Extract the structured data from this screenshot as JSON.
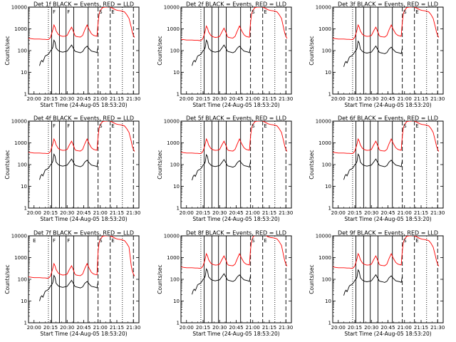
{
  "colors": {
    "events": "#000000",
    "lld": "#ff0000",
    "axes": "#000000",
    "background": "#ffffff"
  },
  "panels": [
    {
      "title": "Det 1f BLACK = Events, RED = LLD",
      "markers": [
        "F",
        "F",
        "S",
        "E"
      ]
    },
    {
      "title": "Det 2f BLACK = Events, RED = LLD",
      "markers": [
        "S",
        "E"
      ]
    },
    {
      "title": "Det 3f BLACK = Events, RED = LLD",
      "markers": [
        "S",
        "E"
      ]
    },
    {
      "title": "Det 4f BLACK = Events, RED = LLD",
      "markers": [
        "F",
        "F",
        "S",
        "E"
      ]
    },
    {
      "title": "Det 5f BLACK = Events, RED = LLD",
      "markers": [
        "S",
        "E"
      ]
    },
    {
      "title": "Det 6f BLACK = Events, RED = LLD",
      "markers": [
        "S",
        "E"
      ]
    },
    {
      "title": "Det 7f BLACK = Events, RED = LLD",
      "markers": [
        "E",
        "F",
        "F",
        "S",
        "E"
      ]
    },
    {
      "title": "Det 8f BLACK = Events, RED = LLD",
      "markers": [
        "S",
        "E"
      ]
    },
    {
      "title": "Det 9f BLACK = Events, RED = LLD",
      "markers": [
        "S",
        "E"
      ]
    }
  ],
  "chart_data": {
    "type": "line",
    "layout": "3x3 grid of identical panels",
    "xlabel": "Start Time (24-Aug-05 18:53:20)",
    "ylabel": "Counts/sec",
    "y_scale": "log",
    "ylim": [
      1,
      10000
    ],
    "y_ticks": [
      1,
      10,
      100,
      1000,
      10000
    ],
    "y_tick_labels": [
      "1",
      "10",
      "100",
      "1000",
      "10000"
    ],
    "xlim_minutes": [
      1195,
      1295
    ],
    "x_tick_minutes": [
      1200,
      1215,
      1230,
      1245,
      1260,
      1275,
      1290
    ],
    "x_tick_labels": [
      "20:00",
      "20:15",
      "20:30",
      "20:45",
      "21:00",
      "21:15",
      "21:30"
    ],
    "vertical_lines": [
      {
        "minute": 1213,
        "style": "dotted"
      },
      {
        "minute": 1216,
        "style": "solid"
      },
      {
        "minute": 1223,
        "style": "solid"
      },
      {
        "minute": 1229,
        "style": "solid"
      },
      {
        "minute": 1236,
        "style": "solid"
      },
      {
        "minute": 1249,
        "style": "solid"
      },
      {
        "minute": 1258,
        "style": "dashed"
      },
      {
        "minute": 1269,
        "style": "dashed"
      },
      {
        "minute": 1280,
        "style": "dotted"
      },
      {
        "minute": 1290,
        "style": "dashed"
      }
    ],
    "series": [
      {
        "name": "Events",
        "color": "#000000",
        "x": [
          1205,
          1206,
          1207,
          1208,
          1209,
          1210,
          1211,
          1212,
          1213,
          1214,
          1215,
          1216,
          1217,
          1218,
          1219,
          1220,
          1222,
          1224,
          1226,
          1228,
          1230,
          1232,
          1234,
          1236,
          1237,
          1238,
          1240,
          1242,
          1244,
          1246,
          1248,
          1250,
          1252,
          1254,
          1256,
          1257,
          1258
        ],
        "y": [
          20,
          30,
          35,
          30,
          40,
          55,
          60,
          62,
          70,
          80,
          100,
          110,
          140,
          300,
          250,
          130,
          100,
          90,
          85,
          90,
          95,
          130,
          180,
          120,
          95,
          90,
          85,
          80,
          90,
          130,
          160,
          120,
          95,
          90,
          85,
          80,
          150
        ]
      },
      {
        "name": "LLD",
        "color": "#ff0000",
        "x": [
          1195,
          1200,
          1205,
          1208,
          1210,
          1212,
          1213,
          1214,
          1215,
          1216,
          1217,
          1218,
          1219,
          1220,
          1222,
          1224,
          1226,
          1228,
          1230,
          1232,
          1234,
          1236,
          1237,
          1238,
          1240,
          1242,
          1244,
          1246,
          1248,
          1250,
          1252,
          1254,
          1256,
          1257,
          1258,
          1259,
          1260,
          1262,
          1264,
          1266,
          1268,
          1270,
          1272,
          1274,
          1276,
          1278,
          1280,
          1282,
          1284,
          1286,
          1288,
          1289,
          1290,
          1291
        ],
        "y": [
          370,
          340,
          340,
          330,
          330,
          320,
          330,
          350,
          420,
          600,
          900,
          1500,
          1200,
          800,
          550,
          480,
          450,
          460,
          500,
          800,
          1200,
          700,
          500,
          450,
          430,
          420,
          500,
          900,
          1500,
          900,
          600,
          500,
          470,
          460,
          2000,
          5000,
          7000,
          9500,
          10000,
          10000,
          10500,
          9500,
          8500,
          7500,
          7000,
          6800,
          6500,
          6000,
          4500,
          3000,
          1200,
          700,
          500,
          400
        ]
      }
    ]
  }
}
